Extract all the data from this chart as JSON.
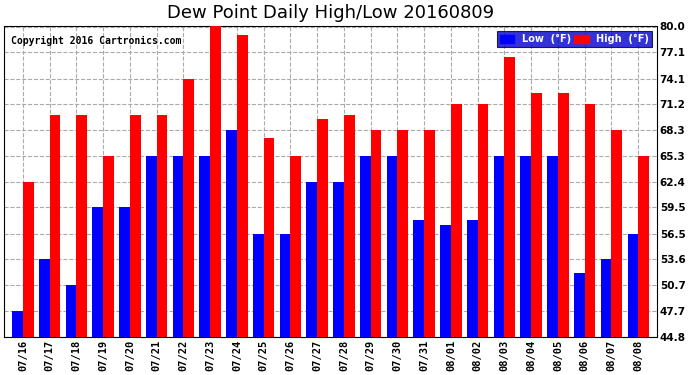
{
  "title": "Dew Point Daily High/Low 20160809",
  "copyright": "Copyright 2016 Cartronics.com",
  "ylim": [
    44.8,
    80.0
  ],
  "yticks": [
    44.8,
    47.7,
    50.7,
    53.6,
    56.5,
    59.5,
    62.4,
    65.3,
    68.3,
    71.2,
    74.1,
    77.1,
    80.0
  ],
  "dates": [
    "07/16",
    "07/17",
    "07/18",
    "07/19",
    "07/20",
    "07/21",
    "07/22",
    "07/23",
    "07/24",
    "07/25",
    "07/26",
    "07/27",
    "07/28",
    "07/29",
    "07/30",
    "07/31",
    "08/01",
    "08/02",
    "08/03",
    "08/04",
    "08/05",
    "08/06",
    "08/07",
    "08/08"
  ],
  "highs": [
    62.4,
    70.0,
    70.0,
    65.3,
    70.0,
    70.0,
    74.1,
    80.0,
    79.0,
    67.3,
    65.3,
    69.5,
    70.0,
    68.3,
    68.3,
    68.3,
    71.2,
    71.2,
    76.5,
    72.5,
    72.5,
    71.2,
    68.3,
    65.3
  ],
  "lows": [
    47.7,
    53.6,
    50.7,
    59.5,
    59.5,
    65.3,
    65.3,
    65.3,
    68.3,
    56.5,
    56.5,
    62.4,
    62.4,
    65.3,
    65.3,
    58.0,
    57.5,
    58.0,
    65.3,
    65.3,
    65.3,
    52.0,
    53.6,
    56.5
  ],
  "high_color": "#FF0000",
  "low_color": "#0000FF",
  "bg_color": "#FFFFFF",
  "title_fontsize": 13,
  "tick_fontsize": 7.5,
  "bar_width": 0.4
}
